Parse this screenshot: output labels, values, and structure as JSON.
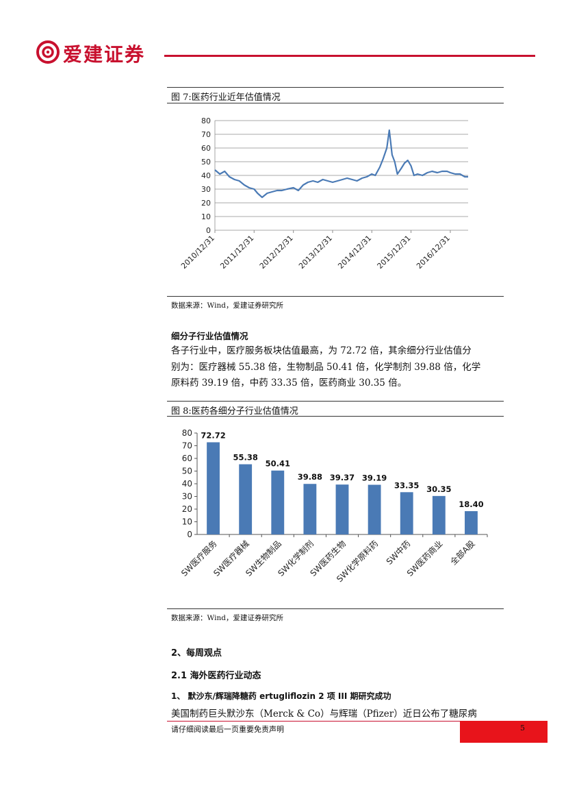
{
  "header": {
    "brand": "爱建证券",
    "logo_icon": "spiral-logo-icon",
    "accent_color": "#c8102e"
  },
  "figure7": {
    "title": "图 7:医药行业近年估值情况",
    "source": "数据来源：Wind，爱建证券研究所"
  },
  "section_subindustry": {
    "heading": "细分子行业估值情况",
    "lines": [
      "各子行业中，医疗服务板块估值最高，为 72.72 倍，其余细分行业估值分",
      "别为：医疗器械 55.38 倍，生物制品 50.41 倍，化学制剂 39.88 倍，化学",
      "原料药 39.19 倍，中药 33.35 倍，医药商业 30.35 倍。"
    ]
  },
  "figure8": {
    "title": "图 8:医药各细分子行业估值情况",
    "source": "数据来源：Wind，爱建证券研究所"
  },
  "weekly": {
    "heading": "2、每周观点",
    "sub_heading": "2.1 海外医药行业动态",
    "item_heading": "1、 默沙东/辉瑞降糖药 ertugliflozin 2 项 III 期研究成功",
    "line": "美国制药巨头默沙东（Merck & Co）与辉瑞（Pfizer）近日公布了糖尿病"
  },
  "footer": {
    "disclaimer": "请仔细阅读最后一页重要免责声明",
    "page_number": "5",
    "page_box_color": "#e8141b"
  },
  "chart_data": [
    {
      "type": "line",
      "title": "",
      "xlabel": "",
      "ylabel": "",
      "ylim": [
        0,
        80
      ],
      "yticks": [
        "0",
        "10",
        "20",
        "30",
        "40",
        "50",
        "60",
        "70",
        "80"
      ],
      "x_ticks": [
        "2010/12/31",
        "2011/12/31",
        "2012/12/31",
        "2013/12/31",
        "2014/12/31",
        "2015/12/31",
        "2016/12/31"
      ],
      "grid": true,
      "line_color": "#4a7ab5",
      "series": [
        {
          "x": [
            "2010/12/31",
            "2011/02/15",
            "2011/04/01",
            "2011/05/15",
            "2011/07/01",
            "2011/08/15",
            "2011/10/01",
            "2011/11/15",
            "2011/12/31",
            "2012/02/01",
            "2012/03/15",
            "2012/05/01",
            "2012/06/15",
            "2012/08/01",
            "2012/09/15",
            "2012/11/01",
            "2012/12/31",
            "2013/02/15",
            "2013/04/01",
            "2013/05/15",
            "2013/07/01",
            "2013/08/15",
            "2013/10/01",
            "2013/11/15",
            "2013/12/31",
            "2014/02/15",
            "2014/04/01",
            "2014/05/15",
            "2014/07/01",
            "2014/08/15",
            "2014/10/01",
            "2014/11/15",
            "2014/12/31",
            "2015/02/01",
            "2015/03/15",
            "2015/04/15",
            "2015/05/20",
            "2015/06/12",
            "2015/07/08",
            "2015/08/01",
            "2015/08/26",
            "2015/09/30",
            "2015/11/01",
            "2015/12/01",
            "2015/12/31",
            "2016/01/28",
            "2016/03/01",
            "2016/04/15",
            "2016/06/01",
            "2016/07/15",
            "2016/09/01",
            "2016/10/15",
            "2016/12/01",
            "2016/12/31",
            "2017/02/15",
            "2017/04/01",
            "2017/05/15",
            "2017/06/15"
          ],
          "values": [
            44,
            41,
            43,
            39,
            37,
            36,
            33,
            31,
            30,
            27,
            24,
            27,
            28,
            29,
            29,
            30,
            31,
            29,
            33,
            35,
            36,
            35,
            37,
            36,
            35,
            36,
            37,
            38,
            37,
            36,
            38,
            39,
            41,
            40,
            46,
            52,
            60,
            73,
            55,
            50,
            41,
            45,
            49,
            51,
            47,
            40,
            41,
            40,
            42,
            43,
            42,
            43,
            43,
            42,
            41,
            41,
            39,
            39
          ]
        }
      ]
    },
    {
      "type": "bar",
      "title": "",
      "xlabel": "",
      "ylabel": "",
      "ylim": [
        0,
        80
      ],
      "yticks": [
        "0",
        "10",
        "20",
        "30",
        "40",
        "50",
        "60",
        "70",
        "80"
      ],
      "grid": false,
      "bar_color": "#4a7ab5",
      "categories": [
        "SW医疗服务",
        "SW医疗器械",
        "SW生物制品",
        "SW化学制剂",
        "SW医药生物",
        "SW化学原料药",
        "SW中药",
        "SW医药商业",
        "全部A股"
      ],
      "values": [
        72.72,
        55.38,
        50.41,
        39.88,
        39.37,
        39.19,
        33.35,
        30.35,
        18.4
      ],
      "data_labels": [
        "72.72",
        "55.38",
        "50.41",
        "39.88",
        "39.37",
        "39.19",
        "33.35",
        "30.35",
        "18.40"
      ]
    }
  ]
}
